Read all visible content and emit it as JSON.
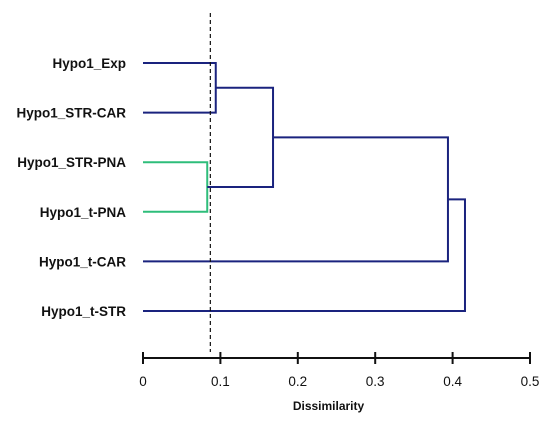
{
  "chart_data": {
    "type": "dendrogram",
    "orientation": "horizontal",
    "xlabel": "Dissimilarity",
    "xlim": [
      0,
      0.5
    ],
    "xticks": [
      0,
      0.1,
      0.2,
      0.3,
      0.4,
      0.5
    ],
    "xtick_labels": [
      "0",
      "0.1",
      "0.2",
      "0.3",
      "0.4",
      "0.5"
    ],
    "cut_line": 0.087,
    "leaves": [
      "Hypo1_Exp",
      "Hypo1_STR-CAR",
      "Hypo1_STR-PNA",
      "Hypo1_t-PNA",
      "Hypo1_t-CAR",
      "Hypo1_t-STR"
    ],
    "merges": [
      {
        "id": "m1",
        "left": "Hypo1_STR-PNA",
        "right": "Hypo1_t-PNA",
        "height": 0.083,
        "color": "#2ebd7a"
      },
      {
        "id": "m2",
        "left": "Hypo1_Exp",
        "right": "Hypo1_STR-CAR",
        "height": 0.094,
        "color": "#1a237e"
      },
      {
        "id": "m3",
        "left": "m2",
        "right": "m1",
        "height": 0.168,
        "color": "#1a237e"
      },
      {
        "id": "m4",
        "left": "m3",
        "right": "Hypo1_t-CAR",
        "height": 0.394,
        "color": "#1a237e"
      },
      {
        "id": "m5",
        "left": "m4",
        "right": "Hypo1_t-STR",
        "height": 0.416,
        "color": "#1a237e"
      }
    ],
    "colors": {
      "cluster_green": "#2ebd7a",
      "main_navy": "#1a237e"
    }
  }
}
